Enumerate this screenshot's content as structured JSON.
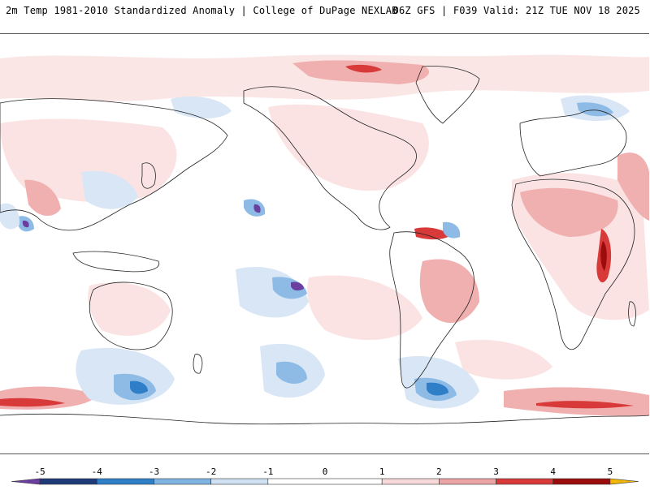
{
  "header": {
    "title": "2m Temp 1981-2010 Standardized Anomaly | College of DuPage NEXLAB",
    "run_info": "06Z GFS | F039 Valid: 21Z TUE NOV 18 2025"
  },
  "colorbar": {
    "labels": [
      "-5",
      "-4",
      "-3",
      "-2",
      "-1",
      "0",
      "1",
      "2",
      "3",
      "4",
      "5"
    ],
    "segments": [
      {
        "from": -5.5,
        "to": -5,
        "color": "#6a3fa0"
      },
      {
        "from": -5,
        "to": -4,
        "color": "#1f3a78"
      },
      {
        "from": -4,
        "to": -3,
        "color": "#2f7fc8"
      },
      {
        "from": -3,
        "to": -2,
        "color": "#7fb4e2"
      },
      {
        "from": -2,
        "to": -1,
        "color": "#cfe0f3"
      },
      {
        "from": -1,
        "to": 1,
        "color": "#ffffff"
      },
      {
        "from": 1,
        "to": 2,
        "color": "#f7d8d8"
      },
      {
        "from": 2,
        "to": 3,
        "color": "#eca3a3"
      },
      {
        "from": 3,
        "to": 4,
        "color": "#d83a3a"
      },
      {
        "from": 4,
        "to": 5,
        "color": "#9b0c0c"
      },
      {
        "from": 5,
        "to": 5.5,
        "color": "#f2b705"
      }
    ]
  },
  "colors": {
    "warm_light": "#fbe3e3",
    "warm_mid": "#f1b0b0",
    "warm_strong": "#d83a3a",
    "warm_extreme": "#9b0c0c",
    "cool_light": "#d8e6f5",
    "cool_mid": "#8dbbe6",
    "cool_strong": "#2f7fc8",
    "cool_extreme": "#6a3fa0",
    "coastline": "#222222"
  }
}
